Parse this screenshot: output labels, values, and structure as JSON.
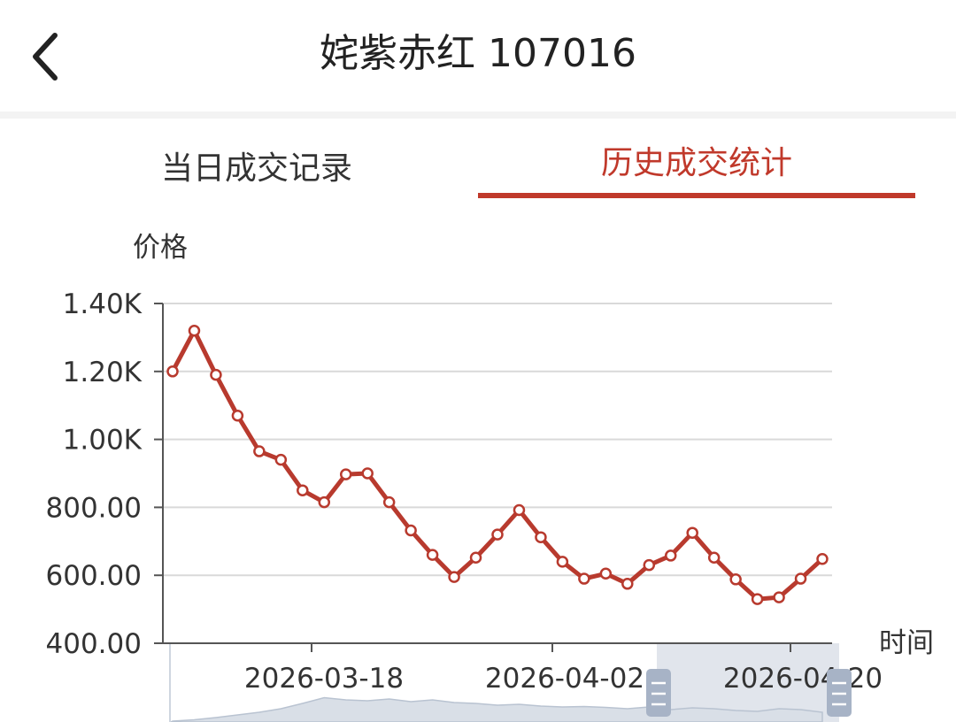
{
  "header": {
    "title": "姹紫赤红 107016",
    "back_icon": "chevron-left-icon"
  },
  "tabs": [
    {
      "label": "当日成交记录",
      "active": false
    },
    {
      "label": "历史成交统计",
      "active": true
    }
  ],
  "colors": {
    "accent": "#c0392b",
    "line": "#b83a2e",
    "grid": "#d9d9d9",
    "axis_text": "#333333",
    "slider_fill": "#c8d0dc",
    "slider_handle": "#a7b3c6"
  },
  "chart_data": {
    "type": "line",
    "ylabel": "价格",
    "xlabel": "时间",
    "ylim": [
      400,
      1400
    ],
    "yticks": [
      "400.00",
      "600.00",
      "800.00",
      "1.00K",
      "1.20K",
      "1.40K"
    ],
    "ytick_values": [
      400,
      600,
      800,
      1000,
      1200,
      1400
    ],
    "xticks": [
      {
        "label": "2026-03-18",
        "index": 7
      },
      {
        "label": "2026-04-02",
        "index": 18
      },
      {
        "label": "2026-04-20",
        "index": 30
      }
    ],
    "grid": true,
    "point_count": 31,
    "values": [
      1200,
      1320,
      1190,
      1070,
      965,
      940,
      850,
      815,
      897,
      900,
      815,
      732,
      660,
      595,
      652,
      720,
      792,
      712,
      640,
      590,
      605,
      575,
      630,
      658,
      725,
      652,
      588,
      530,
      535,
      590,
      648
    ],
    "data_zoom": {
      "start": 0.73,
      "end": 1.0
    }
  }
}
